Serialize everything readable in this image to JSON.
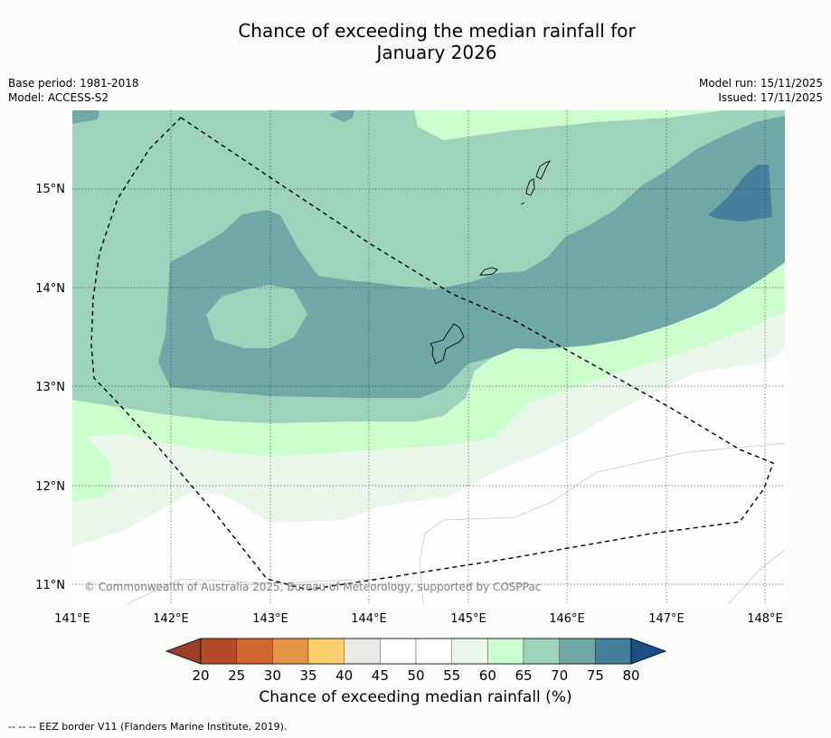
{
  "title": {
    "line1": "Chance of exceeding the median rainfall for",
    "line2": "January 2026"
  },
  "meta_left": {
    "base_period": "Base period: 1981-2018",
    "model": "Model: ACCESS-S2"
  },
  "meta_right": {
    "model_run": "Model run: 15/11/2025",
    "issued": "Issued: 17/11/2025"
  },
  "map": {
    "lat_labels": [
      "15°N",
      "14°N",
      "13°N",
      "12°N",
      "11°N"
    ],
    "lon_labels": [
      "141°E",
      "142°E",
      "143°E",
      "144°E",
      "145°E",
      "146°E",
      "147°E",
      "148°E"
    ],
    "copyright": "© Commonwealth of Australia 2025, Bureau of Meteorology, supported by COSPPac"
  },
  "colorbar": {
    "tick_labels": [
      "20",
      "25",
      "30",
      "35",
      "40",
      "45",
      "50",
      "55",
      "60",
      "65",
      "70",
      "75",
      "80"
    ],
    "colors": [
      "#b34a2a",
      "#d0672f",
      "#e29547",
      "#fbcf6c",
      "#e9ebe6",
      "#ffffff",
      "#ffffff",
      "#eaf6ea",
      "#ccfdcc",
      "#9ed3bb",
      "#6fa8a7",
      "#457f9b"
    ],
    "low_extend_color": "#9b3e28",
    "high_extend_color": "#1b5084",
    "title": "Chance of exceeding median rainfall (%)"
  },
  "footnote": "--  --  -- EEZ border V11 (Flanders Marine Institute, 2019)."
}
